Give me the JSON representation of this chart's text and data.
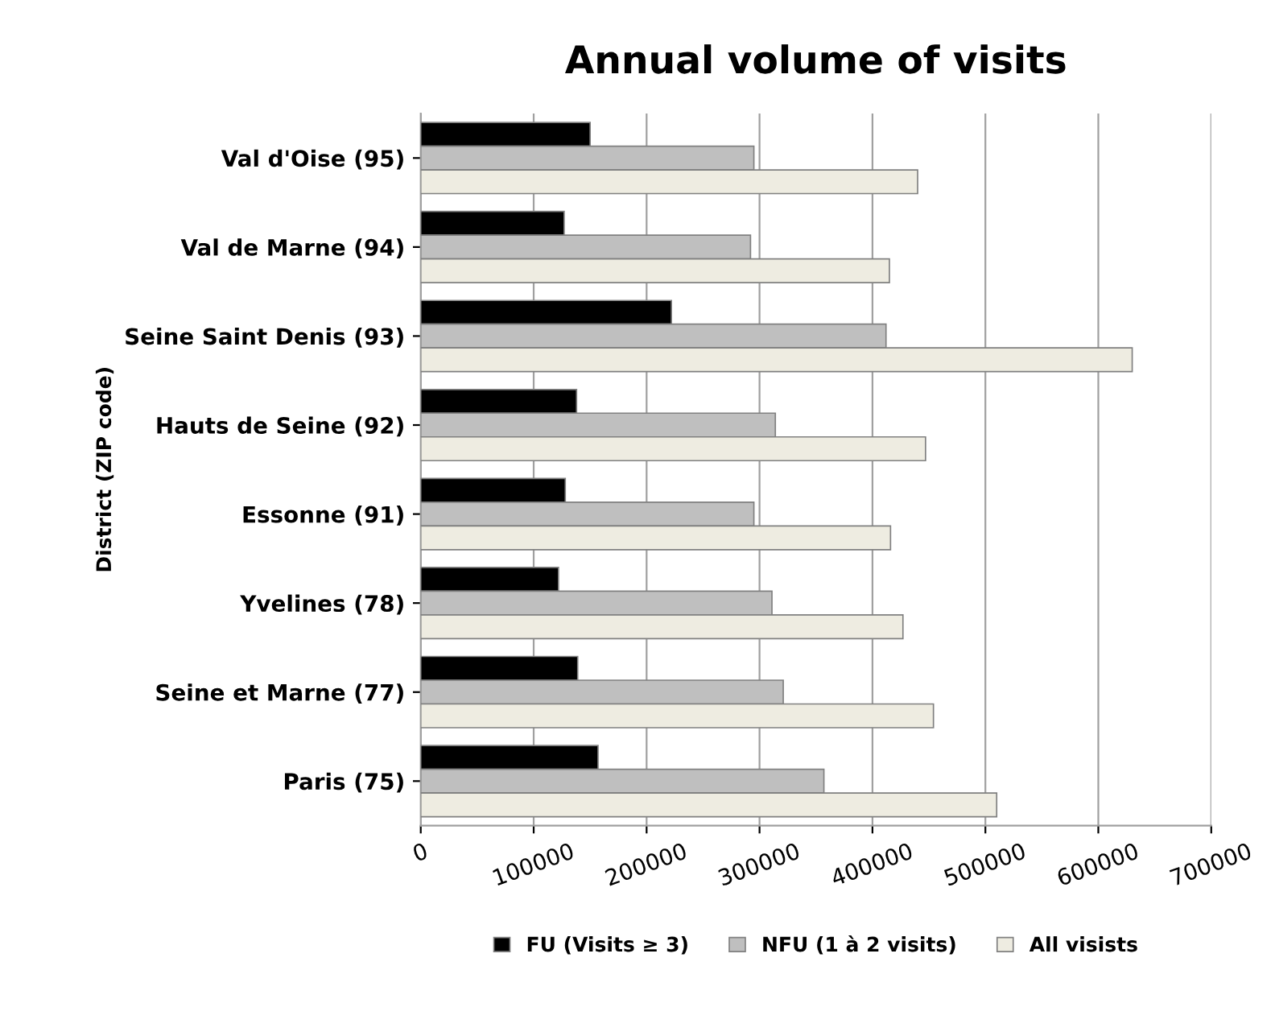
{
  "chart_data": {
    "type": "bar",
    "orientation": "horizontal",
    "title": "Annual volume of visits",
    "ylabel": "District (ZIP code)",
    "categories": [
      "Val d'Oise (95)",
      "Val de Marne (94)",
      "Seine Saint Denis (93)",
      "Hauts de Seine (92)",
      "Essonne (91)",
      "Yvelines (78)",
      "Seine et Marne (77)",
      "Paris (75)"
    ],
    "series": [
      {
        "name": "FU (Visits ≥ 3)",
        "color": "#000000",
        "values": [
          150000,
          127000,
          222000,
          138000,
          128000,
          122000,
          139000,
          157000
        ]
      },
      {
        "name": "NFU (1 à 2 visits)",
        "color": "#bfbfbf",
        "values": [
          295000,
          292000,
          412000,
          314000,
          295000,
          311000,
          321000,
          357000
        ]
      },
      {
        "name": "All visists",
        "color": "#eeece1",
        "values": [
          440000,
          415000,
          630000,
          447000,
          416000,
          427000,
          454000,
          510000
        ]
      }
    ],
    "xlim": [
      0,
      700000
    ],
    "xticks": [
      0,
      100000,
      200000,
      300000,
      400000,
      500000,
      600000,
      700000
    ],
    "grid": "x",
    "legend": "bottom"
  }
}
